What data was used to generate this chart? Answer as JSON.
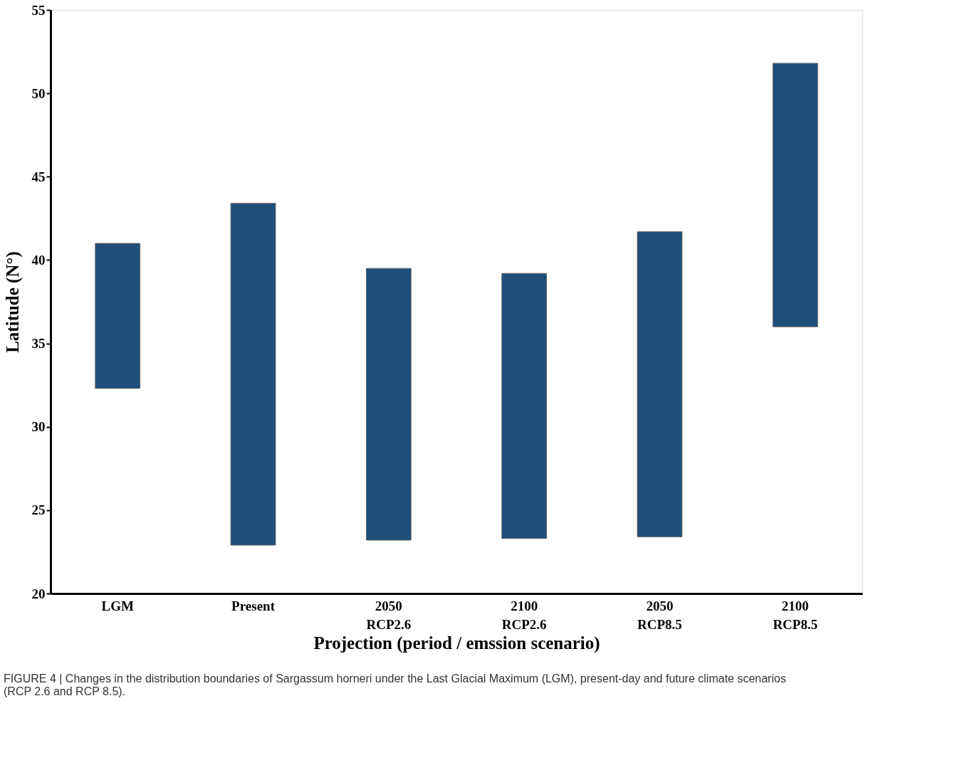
{
  "chart_data": {
    "type": "bar",
    "xlabel": "Projection (period / emssion scenario)",
    "ylabel": "Latitude (N°)",
    "categories": [
      "LGM",
      "Present",
      "2050\nRCP2.6",
      "2100\nRCP2.6",
      "2050\nRCP8.5",
      "2100\nRCP8.5"
    ],
    "base": [
      32.3,
      22.9,
      23.2,
      23.3,
      23.4,
      36.0
    ],
    "values": [
      8.7,
      20.5,
      16.3,
      15.9,
      18.3,
      15.8
    ],
    "color": "#1f4e79",
    "ylim": [
      20,
      55
    ],
    "yticks": [
      20,
      25,
      30,
      35,
      40,
      45,
      50,
      55
    ],
    "grid": false,
    "annotations": [
      "FIGURE 4 | Changes in the distribution boundaries of Sargassum horneri under the Last Glacial Maximum (LGM), present-day and future climate scenarios (RCP 2.6 and RCP 8.5)."
    ]
  }
}
